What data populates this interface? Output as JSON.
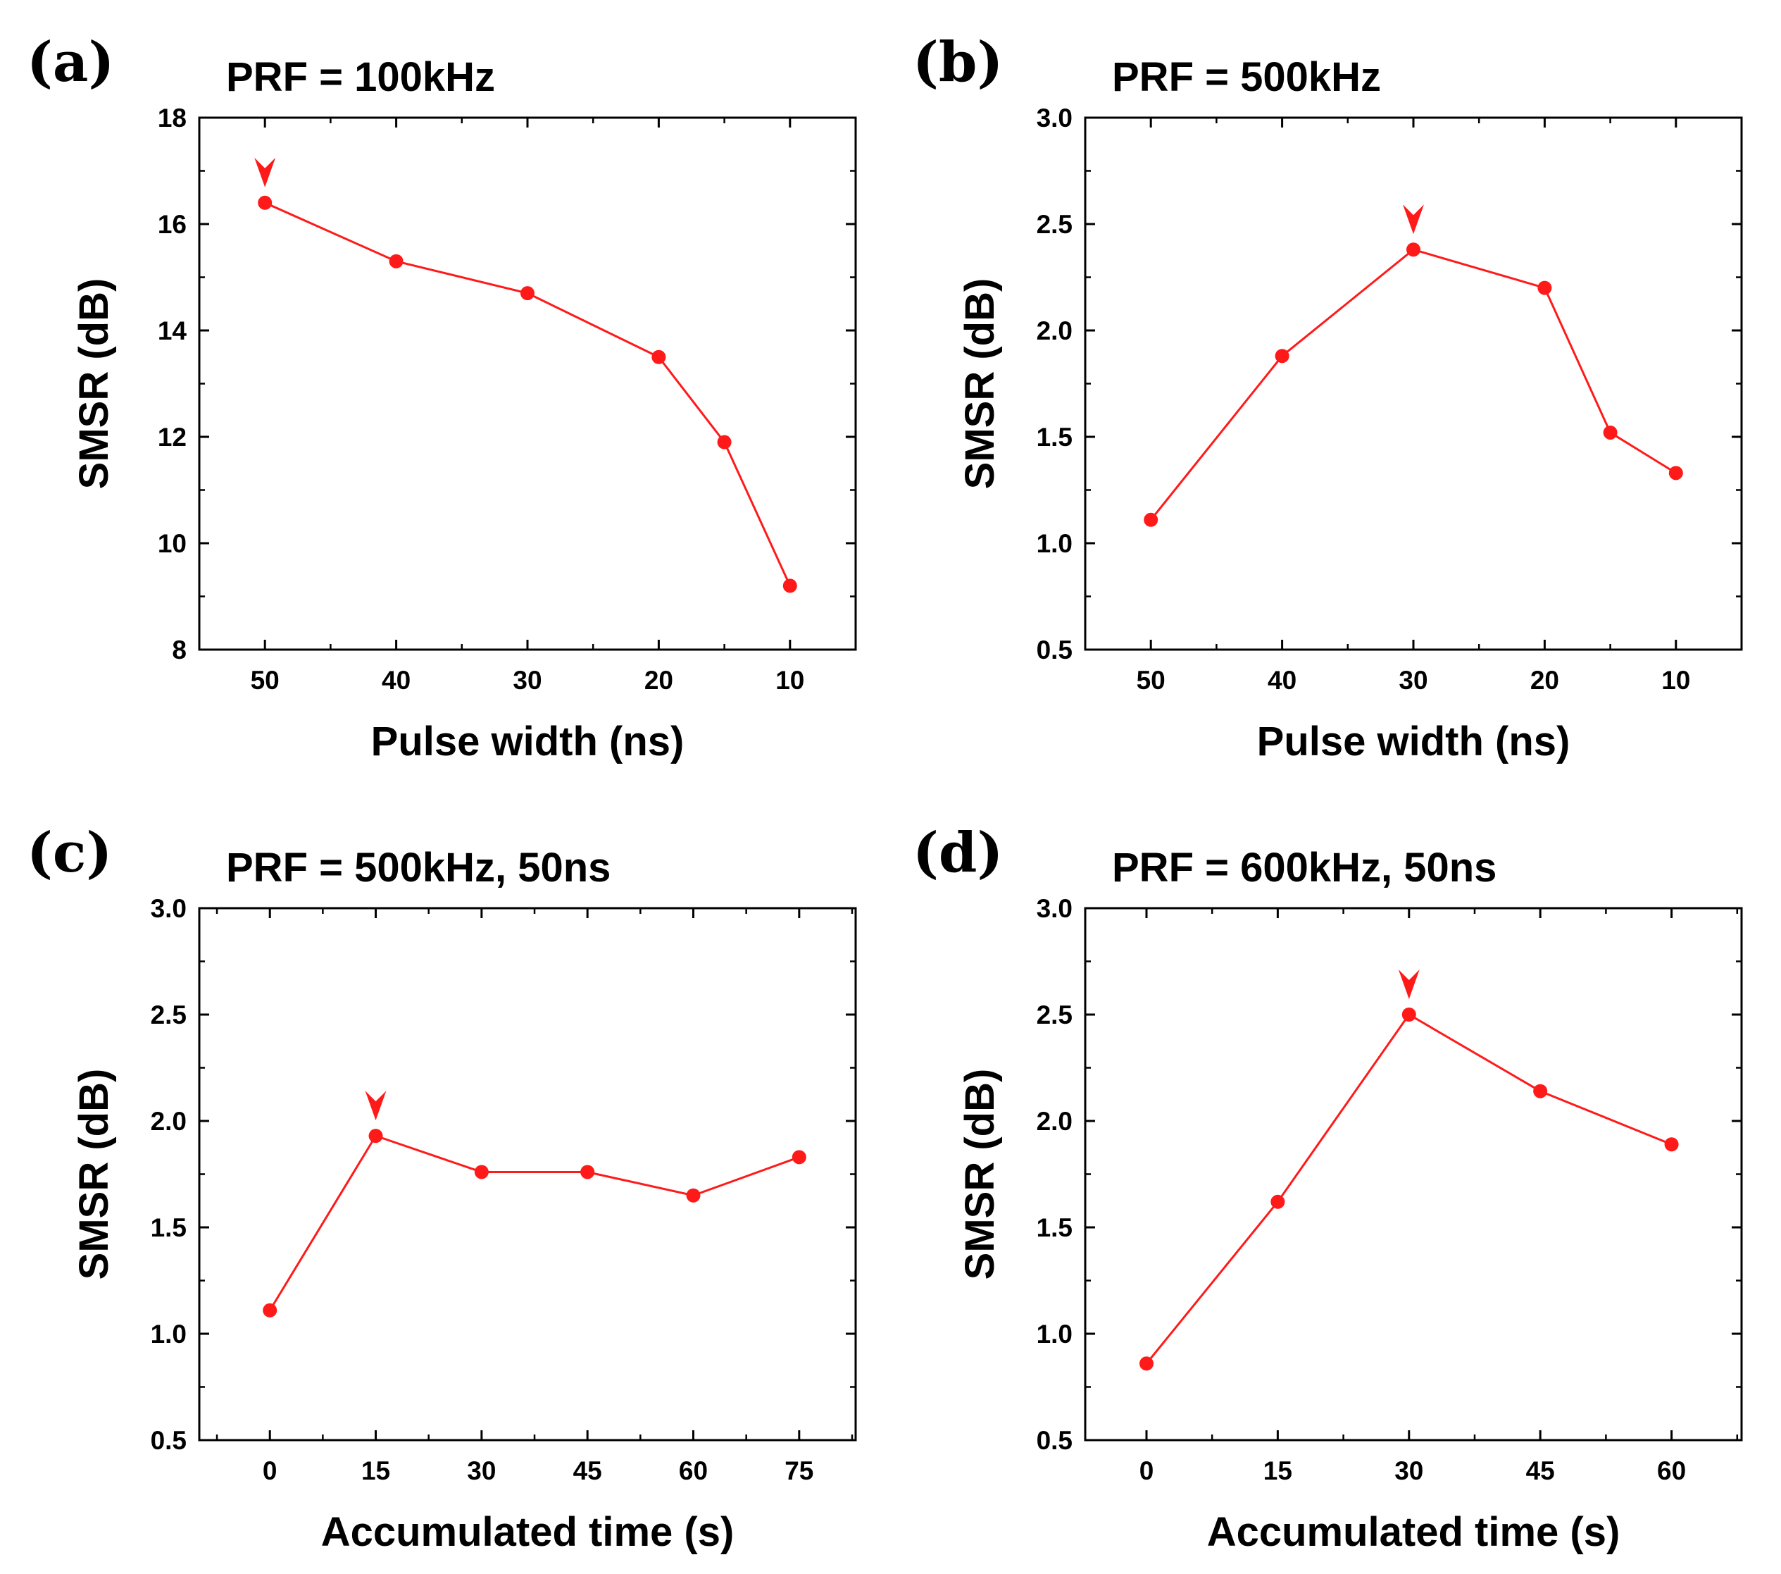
{
  "chart_data": [
    {
      "panel": "(a)",
      "type": "line",
      "title": "PRF = 100kHz",
      "xlabel": "Pulse width (ns)",
      "ylabel": "SMSR (dB)",
      "x_reversed": true,
      "xlim": [
        55,
        5
      ],
      "ylim": [
        8,
        18
      ],
      "xticks": [
        50,
        40,
        30,
        20,
        10
      ],
      "yticks": [
        8,
        10,
        12,
        14,
        16,
        18
      ],
      "ytick_labels": [
        "8",
        "10",
        "12",
        "14",
        "16",
        "18"
      ],
      "color": "#ff1a1a",
      "series": [
        {
          "name": "SMSR",
          "x": [
            50,
            40,
            30,
            20,
            15,
            10
          ],
          "y": [
            16.4,
            15.3,
            14.7,
            13.5,
            11.9,
            9.2
          ]
        }
      ],
      "marker_at": {
        "x": 50,
        "y": 16.4,
        "shape": "arrowhead-down"
      }
    },
    {
      "panel": "(b)",
      "type": "line",
      "title": "PRF = 500kHz",
      "xlabel": "Pulse width (ns)",
      "ylabel": "SMSR (dB)",
      "x_reversed": true,
      "xlim": [
        55,
        5
      ],
      "ylim": [
        0.5,
        3.0
      ],
      "xticks": [
        50,
        40,
        30,
        20,
        10
      ],
      "yticks": [
        0.5,
        1.0,
        1.5,
        2.0,
        2.5,
        3.0
      ],
      "ytick_labels": [
        "0.5",
        "1.0",
        "1.5",
        "2.0",
        "2.5",
        "3.0"
      ],
      "color": "#ff1a1a",
      "series": [
        {
          "name": "SMSR",
          "x": [
            50,
            40,
            30,
            20,
            15,
            10
          ],
          "y": [
            1.11,
            1.88,
            2.38,
            2.2,
            1.52,
            1.33
          ]
        }
      ],
      "marker_at": {
        "x": 30,
        "y": 2.38,
        "shape": "arrowhead-down"
      }
    },
    {
      "panel": "(c)",
      "type": "line",
      "title": "PRF = 500kHz, 50ns",
      "xlabel": "Accumulated time (s)",
      "ylabel": "SMSR (dB)",
      "x_reversed": false,
      "xlim": [
        -10,
        83
      ],
      "ylim": [
        0.5,
        3.0
      ],
      "xticks": [
        0,
        15,
        30,
        45,
        60,
        75
      ],
      "yticks": [
        0.5,
        1.0,
        1.5,
        2.0,
        2.5,
        3.0
      ],
      "ytick_labels": [
        "0.5",
        "1.0",
        "1.5",
        "2.0",
        "2.5",
        "3.0"
      ],
      "color": "#ff1a1a",
      "series": [
        {
          "name": "SMSR",
          "x": [
            0,
            15,
            30,
            45,
            60,
            75
          ],
          "y": [
            1.11,
            1.93,
            1.76,
            1.76,
            1.65,
            1.83
          ]
        }
      ],
      "marker_at": {
        "x": 15,
        "y": 1.93,
        "shape": "arrowhead-down"
      }
    },
    {
      "panel": "(d)",
      "type": "line",
      "title": "PRF = 600kHz, 50ns",
      "xlabel": "Accumulated time (s)",
      "ylabel": "SMSR (dB)",
      "x_reversed": false,
      "xlim": [
        -7,
        68
      ],
      "ylim": [
        0.5,
        3.0
      ],
      "xticks": [
        0,
        15,
        30,
        45,
        60
      ],
      "yticks": [
        0.5,
        1.0,
        1.5,
        2.0,
        2.5,
        3.0
      ],
      "ytick_labels": [
        "0.5",
        "1.0",
        "1.5",
        "2.0",
        "2.5",
        "3.0"
      ],
      "color": "#ff1a1a",
      "series": [
        {
          "name": "SMSR",
          "x": [
            0,
            15,
            30,
            45,
            60
          ],
          "y": [
            0.86,
            1.62,
            2.5,
            2.14,
            1.89
          ]
        }
      ],
      "marker_at": {
        "x": 30,
        "y": 2.5,
        "shape": "arrowhead-down"
      }
    }
  ]
}
